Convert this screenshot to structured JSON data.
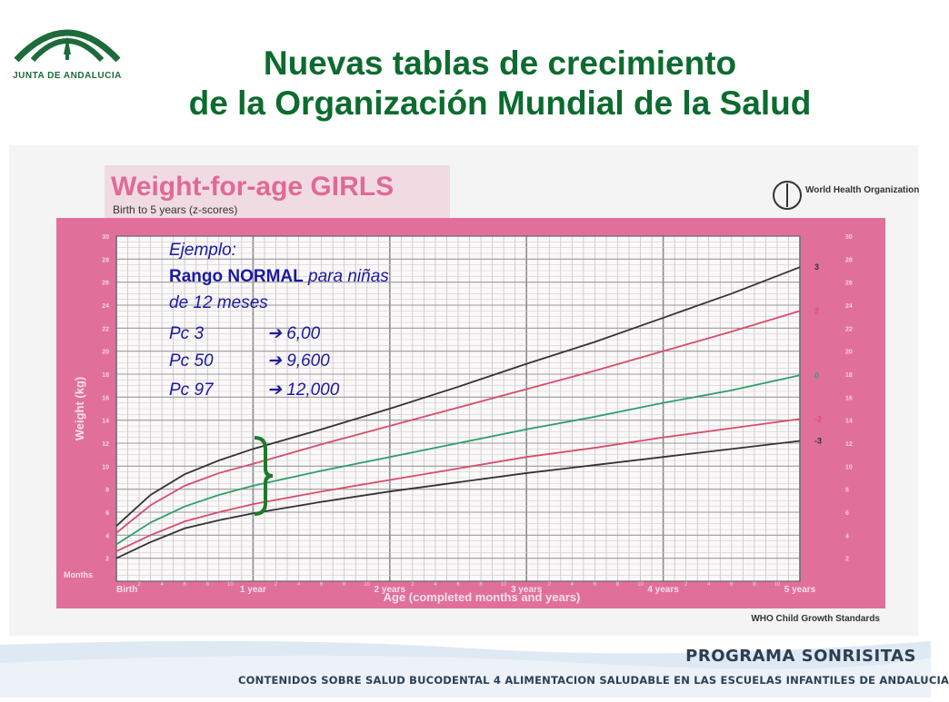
{
  "header": {
    "logo_text": "JUNTA DE ANDALUCIA",
    "title_line1": "Nuevas tablas de crecimiento",
    "title_line2": "de la Organización Mundial de la Salud"
  },
  "annotation": {
    "heading": "Ejemplo:",
    "range_bold": "Rango NORMAL",
    "range_rest": " para niñas",
    "range_line2": "de 12 meses",
    "rows": [
      {
        "label": "Pc 3",
        "arrow": "➔",
        "value": "6,00"
      },
      {
        "label": "Pc 50",
        "arrow": "➔",
        "value": "9,600"
      },
      {
        "label": "Pc 97",
        "arrow": "➔",
        "value": "12,000"
      }
    ]
  },
  "footer": {
    "program": "PROGRAMA SONRISITAS",
    "subtitle": "CONTENIDOS SOBRE SALUD BUCODENTAL 4   ALIMENTACION SALUDABLE EN LAS ESCUELAS INFANTILES DE ANDALUCIA"
  },
  "colors": {
    "title_green": "#0c6b2e",
    "chart_pink": "#e0709a",
    "grid_bg": "#fbf8f9",
    "line_red": "#d94c6c",
    "line_green": "#2d9f6a",
    "line_black": "#333333",
    "annotation_blue": "#1a1aa0",
    "brace_green": "#1d7a2a"
  },
  "chart_data": {
    "type": "line",
    "title": "Weight-for-age GIRLS",
    "subtitle": "Birth to 5 years (z-scores)",
    "organization": "World Health Organization",
    "source": "WHO Child Growth Standards",
    "xlabel": "Age (completed months and years)",
    "ylabel": "Weight (kg)",
    "months_label": "Months",
    "xlim": [
      0,
      60
    ],
    "ylim": [
      0,
      30
    ],
    "yticks": [
      2,
      4,
      6,
      8,
      10,
      12,
      14,
      16,
      18,
      20,
      22,
      24,
      26,
      28,
      30
    ],
    "x_major_labels": [
      {
        "month": 0,
        "label": "Birth"
      },
      {
        "month": 12,
        "label": "1 year"
      },
      {
        "month": 24,
        "label": "2 years"
      },
      {
        "month": 36,
        "label": "3 years"
      },
      {
        "month": 48,
        "label": "4 years"
      },
      {
        "month": 60,
        "label": "5 years"
      }
    ],
    "x_minor_labels": [
      "2",
      "4",
      "6",
      "8",
      "10"
    ],
    "grid": true,
    "x": [
      0,
      3,
      6,
      9,
      12,
      18,
      24,
      30,
      36,
      42,
      48,
      54,
      60
    ],
    "series": [
      {
        "name": "3",
        "color": "#333333",
        "values": [
          4.8,
          7.5,
          9.3,
          10.5,
          11.5,
          13.2,
          15.0,
          16.9,
          18.9,
          20.8,
          22.9,
          25.0,
          27.3
        ]
      },
      {
        "name": "2",
        "color": "#d94c6c",
        "values": [
          4.2,
          6.6,
          8.3,
          9.4,
          10.2,
          11.9,
          13.5,
          15.1,
          16.7,
          18.3,
          20.0,
          21.7,
          23.5
        ]
      },
      {
        "name": "0",
        "color": "#2d9f6a",
        "values": [
          3.2,
          5.1,
          6.5,
          7.5,
          8.3,
          9.6,
          10.8,
          12.0,
          13.2,
          14.3,
          15.5,
          16.6,
          17.9
        ]
      },
      {
        "name": "-2",
        "color": "#d94c6c",
        "values": [
          2.6,
          4.0,
          5.2,
          6.0,
          6.7,
          7.8,
          8.8,
          9.8,
          10.8,
          11.6,
          12.5,
          13.3,
          14.1
        ]
      },
      {
        "name": "-3",
        "color": "#333333",
        "values": [
          2.0,
          3.4,
          4.6,
          5.3,
          5.9,
          6.9,
          7.8,
          8.6,
          9.4,
          10.1,
          10.8,
          11.5,
          12.2
        ]
      }
    ]
  }
}
